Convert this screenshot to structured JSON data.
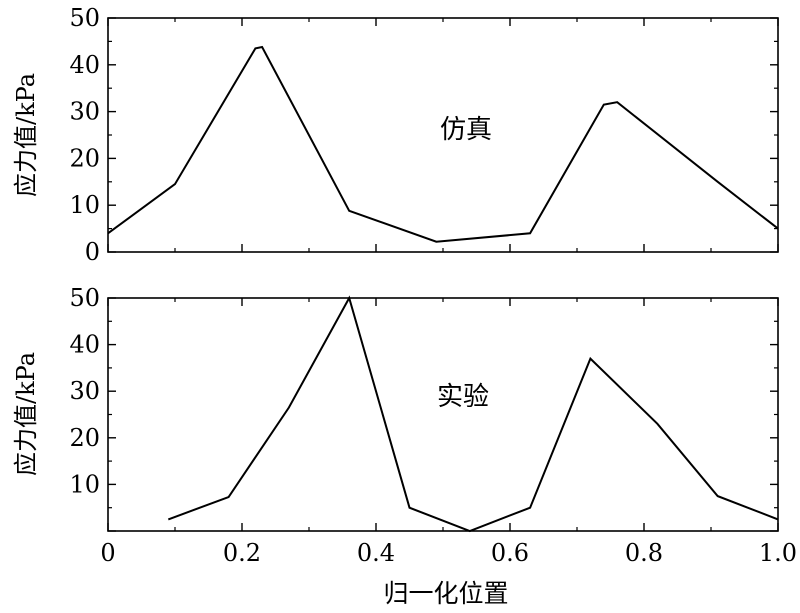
{
  "chart_data": [
    {
      "type": "line",
      "annotation": "仿真",
      "ylabel": "应力值/kPa",
      "xlim": [
        0,
        1.0
      ],
      "ylim": [
        0,
        50
      ],
      "yticks": [
        "0",
        "10",
        "20",
        "30",
        "40",
        "50"
      ],
      "series": [
        {
          "x": [
            0,
            0.1,
            0.22,
            0.23,
            0.36,
            0.49,
            0.63,
            0.74,
            0.76,
            0.91,
            1.0
          ],
          "y": [
            4,
            14.5,
            43.5,
            43.8,
            8.8,
            2.2,
            4,
            31.5,
            32,
            15,
            5
          ]
        }
      ]
    },
    {
      "type": "line",
      "annotation": "实验",
      "ylabel": "应力值/kPa",
      "xlabel": "归一化位置",
      "xlim": [
        0,
        1.0
      ],
      "ylim": [
        0,
        50
      ],
      "yticks": [
        "10",
        "20",
        "30",
        "40",
        "50"
      ],
      "xticks": [
        "0",
        "0.2",
        "0.4",
        "0.6",
        "0.8",
        "1.0"
      ],
      "series": [
        {
          "x": [
            0.09,
            0.18,
            0.27,
            0.36,
            0.45,
            0.54,
            0.63,
            0.72,
            0.82,
            0.91,
            1.0
          ],
          "y": [
            2.5,
            7.3,
            26.5,
            50,
            5,
            0,
            5,
            37,
            23,
            7.5,
            2.5
          ]
        }
      ]
    }
  ]
}
